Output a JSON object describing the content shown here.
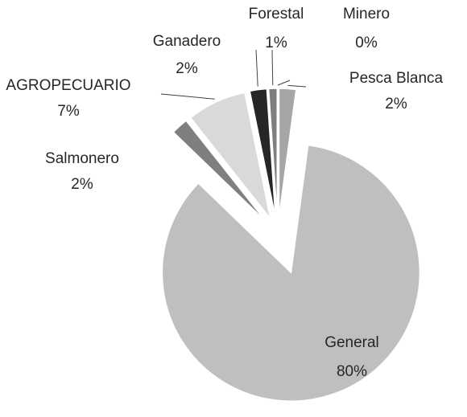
{
  "chart_data": {
    "type": "pie",
    "categories": [
      "Pesca Blanca",
      "General",
      "Salmonero",
      "AGROPECUARIO",
      "Ganadero",
      "Forestal",
      "Minero"
    ],
    "values": [
      2,
      80,
      2,
      7,
      2,
      1,
      0
    ],
    "value_labels": [
      "2%",
      "80%",
      "2%",
      "7%",
      "2%",
      "1%",
      "0%"
    ],
    "colors": [
      "#a6a6a6",
      "#bfbfbf",
      "#7f7f7f",
      "#d9d9d9",
      "#262626",
      "#7f7f7f",
      "#e0e0e0"
    ]
  }
}
